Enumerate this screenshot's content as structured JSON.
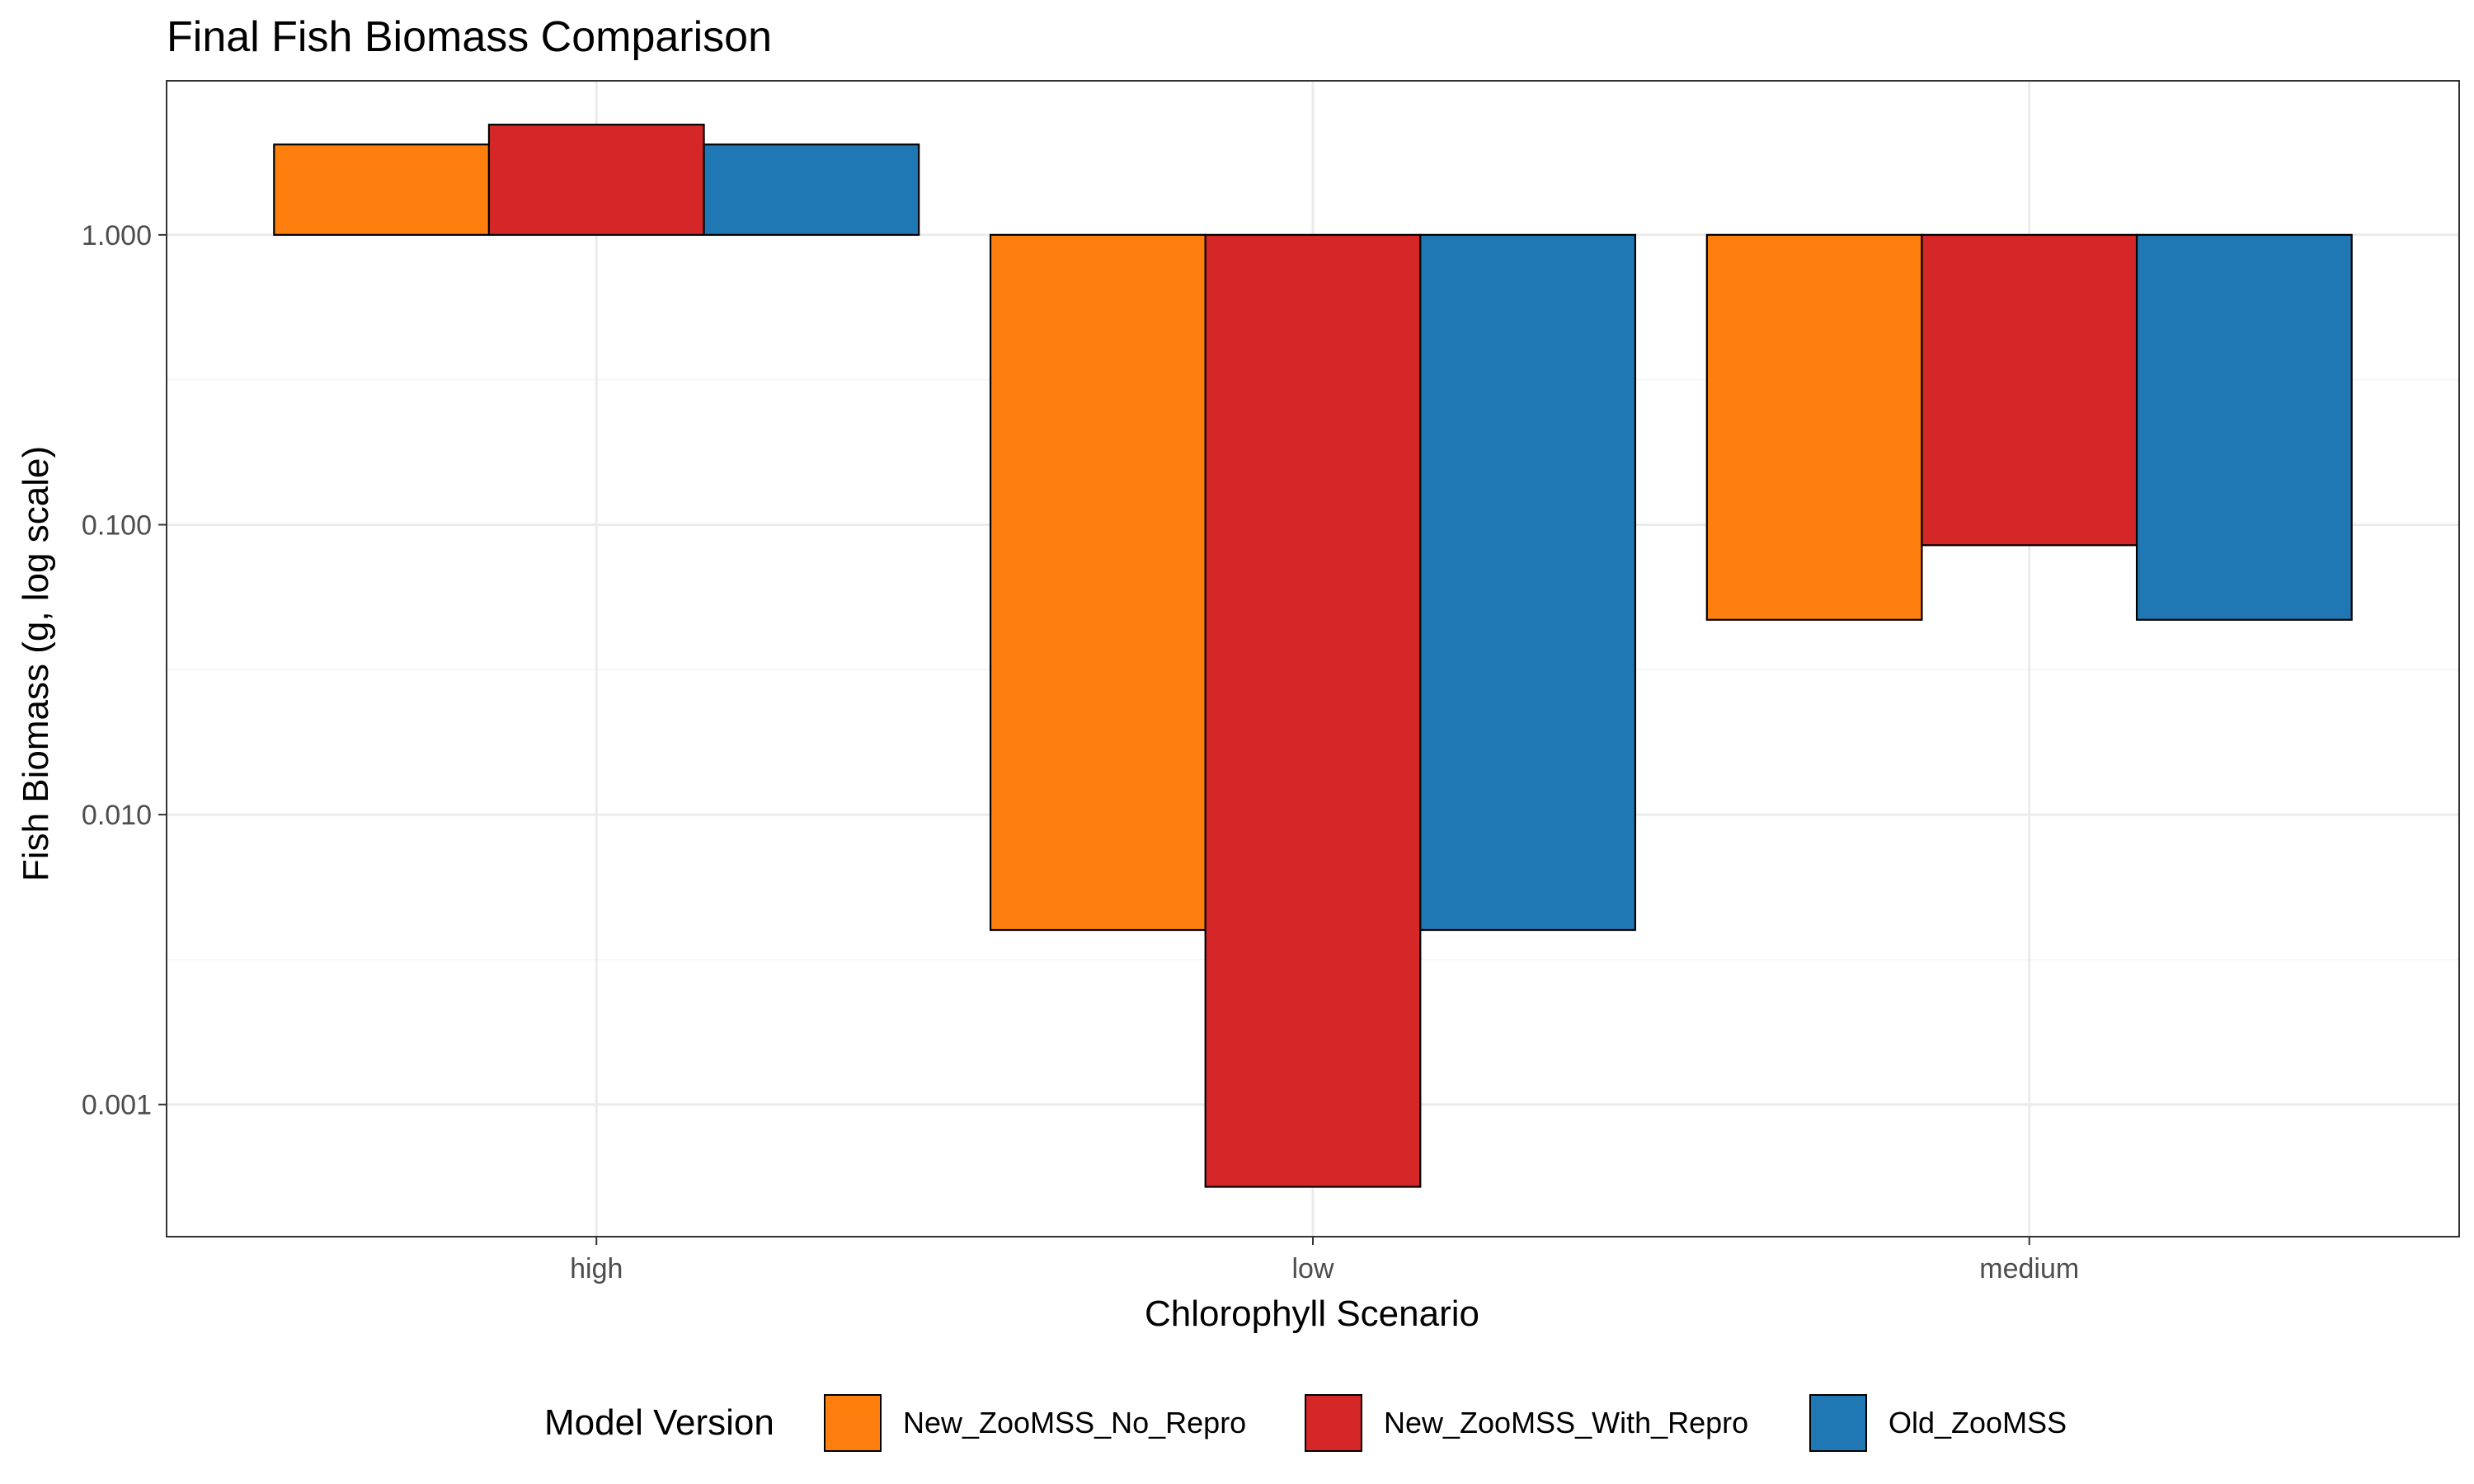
{
  "chart_data": {
    "type": "bar",
    "title": "Final Fish Biomass Comparison",
    "xlabel": "Chlorophyll Scenario",
    "ylabel": "Fish Biomass (g, log scale)",
    "y_scale": "log10",
    "bar_baseline": 1.0,
    "ylim": [
      0.00035,
      3.4
    ],
    "yticks": [
      0.001,
      0.01,
      0.1,
      1
    ],
    "ytick_labels": [
      "0.001",
      "0.010",
      "0.100",
      "1.000"
    ],
    "categories": [
      "high",
      "low",
      "medium"
    ],
    "grid": true,
    "legend": {
      "title": "Model Version",
      "position": "bottom"
    },
    "series": [
      {
        "name": "New_ZooMSS_No_Repro",
        "color": "#ff7f0e",
        "values": [
          2.05,
          0.004,
          0.047
        ]
      },
      {
        "name": "New_ZooMSS_With_Repro",
        "color": "#d62728",
        "values": [
          2.4,
          0.00052,
          0.085
        ]
      },
      {
        "name": "Old_ZooMSS",
        "color": "#1f77b4",
        "values": [
          2.05,
          0.004,
          0.047
        ]
      }
    ]
  }
}
